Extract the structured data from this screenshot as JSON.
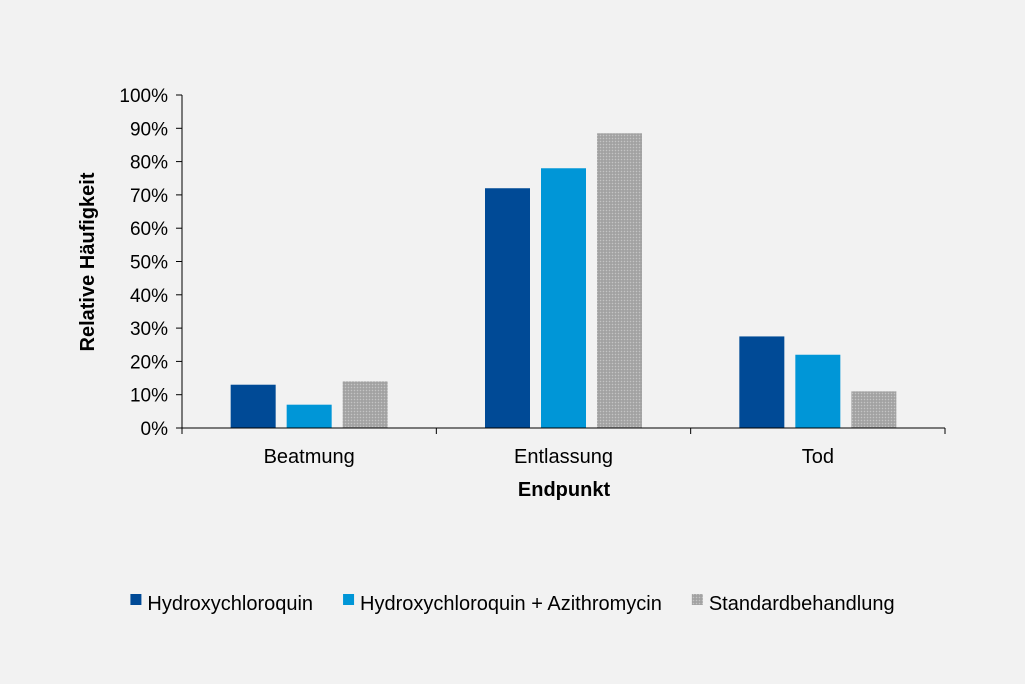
{
  "chart_data": {
    "type": "bar",
    "categories": [
      "Beatmung",
      "Entlassung",
      "Tod"
    ],
    "series": [
      {
        "name": "Hydroxychloroquin",
        "values": [
          13,
          72,
          27.5
        ],
        "color": "#004a96"
      },
      {
        "name": "Hydroxychloroquin + Azithromycin",
        "values": [
          7,
          78,
          22
        ],
        "color": "#0096d7"
      },
      {
        "name": "Standardbehandlung",
        "values": [
          14,
          88.5,
          11
        ],
        "color": "#a6a6a6",
        "pattern": "dotted"
      }
    ],
    "xlabel": "Endpunkt",
    "ylabel": "Relative Häufigkeit",
    "ylim": [
      0,
      100
    ],
    "yticks": [
      0,
      10,
      20,
      30,
      40,
      50,
      60,
      70,
      80,
      90,
      100
    ],
    "ytick_labels": [
      "0%",
      "10%",
      "20%",
      "30%",
      "40%",
      "50%",
      "60%",
      "70%",
      "80%",
      "90%",
      "100%"
    ],
    "grid": false,
    "legend_position": "bottom"
  }
}
